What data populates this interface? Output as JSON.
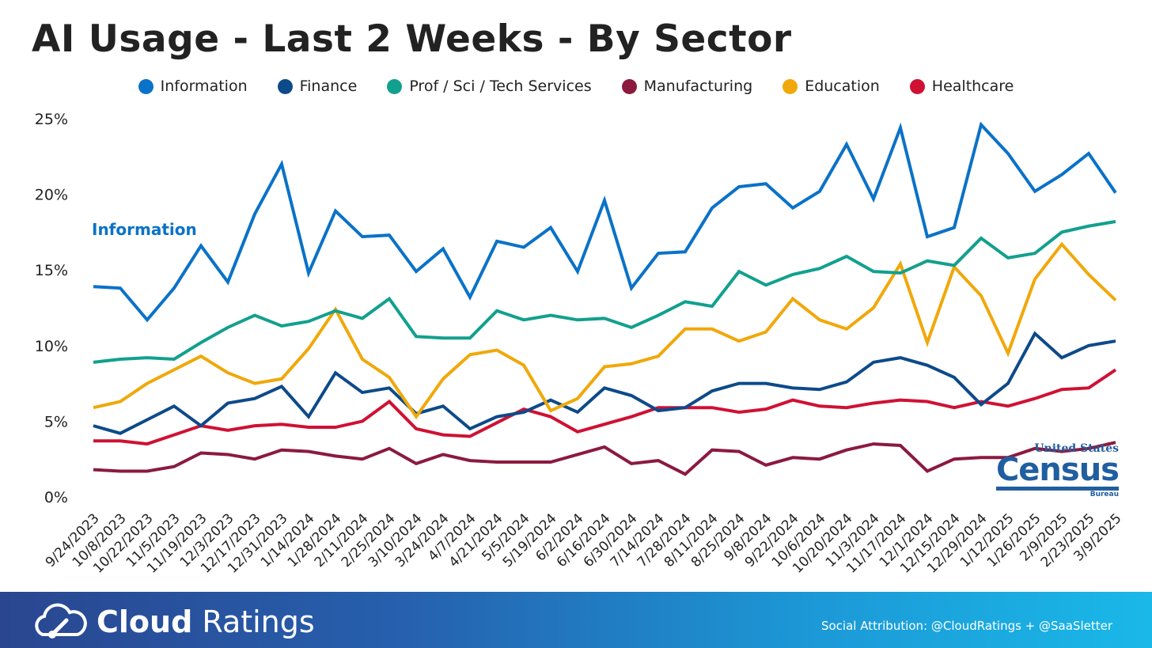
{
  "title": "AI Usage - Last 2 Weeks - By Sector",
  "chart_data": {
    "type": "line",
    "title": "AI Usage - Last 2 Weeks - By Sector",
    "xlabel": "",
    "ylabel": "",
    "ylim": [
      0,
      25
    ],
    "yticks": [
      "0%",
      "5%",
      "10%",
      "15%",
      "20%",
      "25%"
    ],
    "grid": false,
    "legend_position": "top",
    "annotation": "Information",
    "categories": [
      "9/24/2023",
      "10/8/2023",
      "10/22/2023",
      "11/5/2023",
      "11/19/2023",
      "12/3/2023",
      "12/17/2023",
      "12/31/2023",
      "1/14/2024",
      "1/28/2024",
      "2/11/2024",
      "2/25/2024",
      "3/10/2024",
      "3/24/2024",
      "4/7/2024",
      "4/21/2024",
      "5/5/2024",
      "5/19/2024",
      "6/2/2024",
      "6/16/2024",
      "6/30/2024",
      "7/14/2024",
      "7/28/2024",
      "8/11/2024",
      "8/25/2024",
      "9/8/2024",
      "9/22/2024",
      "10/6/2024",
      "10/20/2024",
      "11/3/2024",
      "11/17/2024",
      "12/1/2024",
      "12/15/2024",
      "12/29/2024",
      "1/12/2025",
      "1/26/2025",
      "2/9/2025",
      "2/23/2025",
      "3/9/2025"
    ],
    "series": [
      {
        "name": "Information",
        "color": "#0a72c8",
        "values": [
          13.9,
          13.8,
          11.7,
          13.8,
          16.6,
          14.2,
          18.7,
          22.0,
          14.8,
          18.9,
          17.2,
          17.3,
          14.9,
          16.4,
          13.2,
          16.9,
          16.5,
          17.8,
          14.9,
          19.6,
          13.8,
          16.1,
          16.2,
          19.1,
          20.5,
          20.7,
          19.1,
          20.2,
          23.3,
          19.7,
          24.4,
          17.2,
          17.8,
          24.6,
          22.7,
          20.2,
          21.3,
          22.7,
          20.1
        ]
      },
      {
        "name": "Finance",
        "color": "#0d4a8a",
        "values": [
          4.7,
          4.2,
          5.1,
          6.0,
          4.7,
          6.2,
          6.5,
          7.3,
          5.3,
          8.2,
          6.9,
          7.2,
          5.5,
          6.0,
          4.5,
          5.3,
          5.6,
          6.4,
          5.6,
          7.2,
          6.7,
          5.7,
          5.9,
          7.0,
          7.5,
          7.5,
          7.2,
          7.1,
          7.6,
          8.9,
          9.2,
          8.7,
          7.9,
          6.1,
          7.5,
          10.8,
          9.2,
          10.0,
          10.3
        ]
      },
      {
        "name": "Prof / Sci / Tech Services",
        "color": "#12a08e",
        "values": [
          8.9,
          9.1,
          9.2,
          9.1,
          10.2,
          11.2,
          12.0,
          11.3,
          11.6,
          12.3,
          11.8,
          13.1,
          10.6,
          10.5,
          10.5,
          12.3,
          11.7,
          12.0,
          11.7,
          11.8,
          11.2,
          12.0,
          12.9,
          12.6,
          14.9,
          14.0,
          14.7,
          15.1,
          15.9,
          14.9,
          14.8,
          15.6,
          15.3,
          17.1,
          15.8,
          16.1,
          17.5,
          17.9,
          18.2
        ]
      },
      {
        "name": "Manufacturing",
        "color": "#8b1a3e",
        "values": [
          1.8,
          1.7,
          1.7,
          2.0,
          2.9,
          2.8,
          2.5,
          3.1,
          3.0,
          2.7,
          2.5,
          3.2,
          2.2,
          2.8,
          2.4,
          2.3,
          2.3,
          2.3,
          2.8,
          3.3,
          2.2,
          2.4,
          1.5,
          3.1,
          3.0,
          2.1,
          2.6,
          2.5,
          3.1,
          3.5,
          3.4,
          1.7,
          2.5,
          2.6,
          2.6,
          3.2,
          3.0,
          3.2,
          3.6
        ]
      },
      {
        "name": "Education",
        "color": "#f0a80a",
        "values": [
          5.9,
          6.3,
          7.5,
          8.4,
          9.3,
          8.2,
          7.5,
          7.8,
          9.8,
          12.4,
          9.1,
          7.9,
          5.3,
          7.8,
          9.4,
          9.7,
          8.7,
          5.7,
          6.5,
          8.6,
          8.8,
          9.3,
          11.1,
          11.1,
          10.3,
          10.9,
          13.1,
          11.7,
          11.1,
          12.5,
          15.4,
          10.2,
          15.2,
          13.3,
          9.5,
          14.4,
          16.7,
          14.7,
          13.0
        ]
      },
      {
        "name": "Healthcare",
        "color": "#cf1134",
        "values": [
          3.7,
          3.7,
          3.5,
          4.1,
          4.7,
          4.4,
          4.7,
          4.8,
          4.6,
          4.6,
          5.0,
          6.3,
          4.5,
          4.1,
          4.0,
          4.9,
          5.8,
          5.3,
          4.3,
          4.8,
          5.3,
          5.9,
          5.9,
          5.9,
          5.6,
          5.8,
          6.4,
          6.0,
          5.9,
          6.2,
          6.4,
          6.3,
          5.9,
          6.3,
          6.0,
          6.5,
          7.1,
          7.2,
          8.4
        ]
      }
    ]
  },
  "logo": {
    "census_top": "United States",
    "census_main": "Census",
    "census_bottom": "Bureau"
  },
  "footer": {
    "brand_bold": "Cloud",
    "brand_light": "Ratings",
    "attribution": "Social Attribution: @CloudRatings + @SaaSletter"
  }
}
